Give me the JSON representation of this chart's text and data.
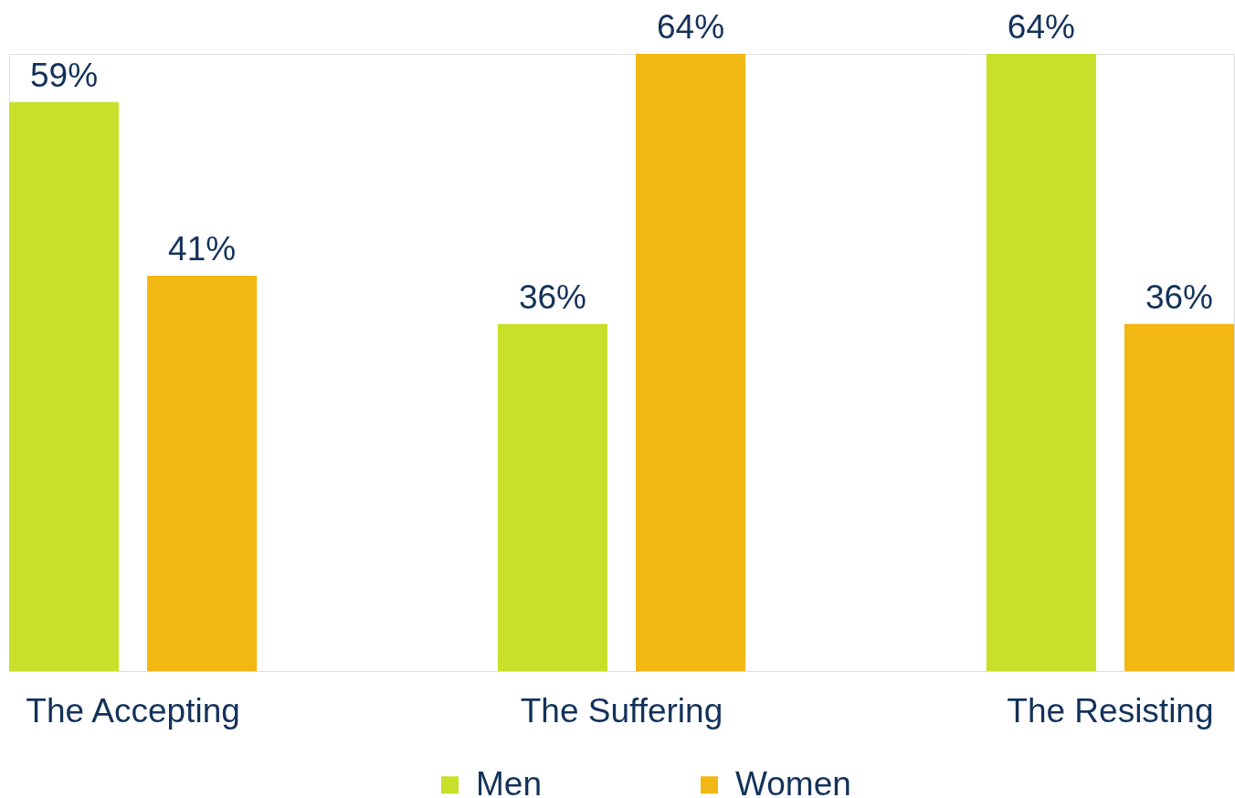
{
  "chart_data": {
    "type": "bar",
    "categories": [
      "The Accepting",
      "The Suffering",
      "The Resisting"
    ],
    "series": [
      {
        "name": "Men",
        "color": "#c8e02a",
        "values": [
          59,
          36,
          64
        ],
        "value_labels": [
          "59%",
          "36%",
          "64%"
        ]
      },
      {
        "name": "Women",
        "color": "#f2b712",
        "values": [
          41,
          64,
          36
        ],
        "value_labels": [
          "41%",
          "64%",
          "36%"
        ]
      }
    ],
    "legend": "bottom",
    "tick_labels": "x"
  }
}
